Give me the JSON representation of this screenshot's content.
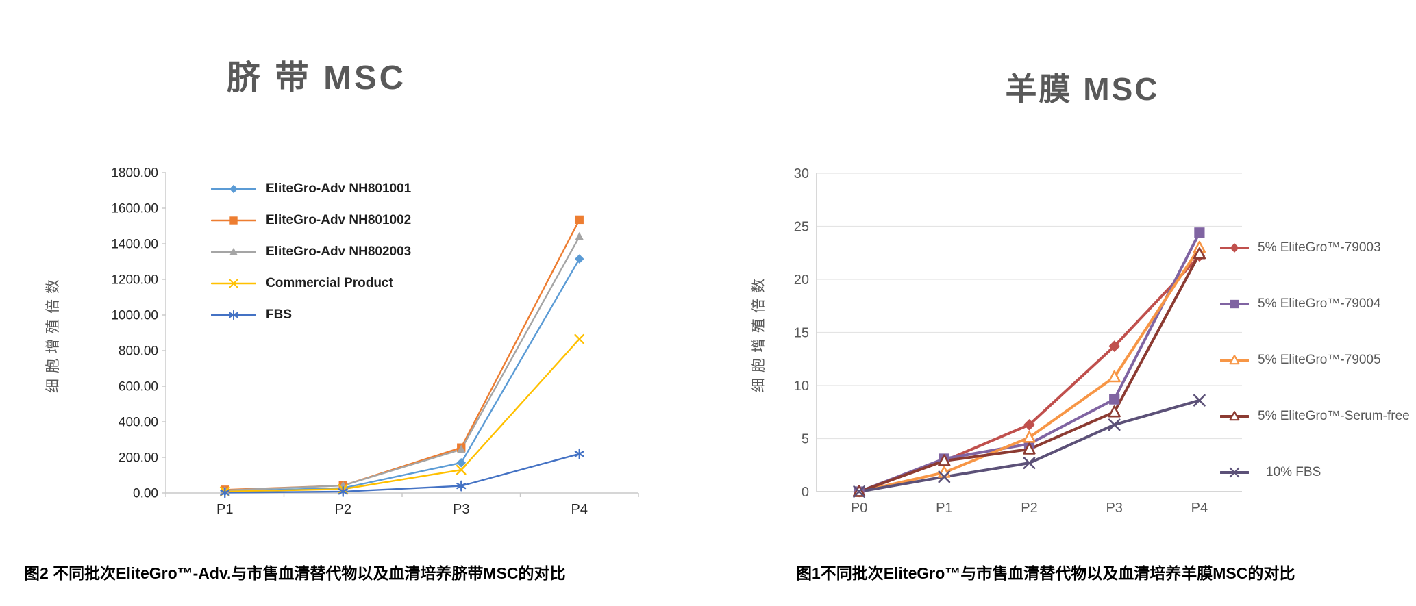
{
  "chart_data": [
    {
      "type": "line",
      "title": "脐 带 MSC",
      "ylabel": "细胞增殖倍数",
      "xlabel": "",
      "caption": "图2 不同批次EliteGro™-Adv.与市售血清替代物以及血清培养脐带MSC的对比",
      "categories": [
        "P1",
        "P2",
        "P3",
        "P4"
      ],
      "ylim": [
        0,
        1800
      ],
      "ytick_labels": [
        "0.00",
        "200.00",
        "400.00",
        "600.00",
        "800.00",
        "1000.00",
        "1200.00",
        "1400.00",
        "1600.00",
        "1800.00"
      ],
      "grid": false,
      "legend_position": "inside-top-left",
      "series": [
        {
          "name": "EliteGro-Adv NH801001",
          "color": "#5B9BD5",
          "marker": "diamond",
          "values": [
            10,
            28,
            170,
            1315
          ]
        },
        {
          "name": "EliteGro-Adv NH801002",
          "color": "#ED7D31",
          "marker": "square",
          "values": [
            18,
            42,
            255,
            1535
          ]
        },
        {
          "name": "EliteGro-Adv NH802003",
          "color": "#A5A5A5",
          "marker": "triangle",
          "values": [
            15,
            42,
            245,
            1440
          ]
        },
        {
          "name": "Commercial Product",
          "color": "#FFC000",
          "marker": "x",
          "values": [
            8,
            22,
            130,
            865
          ]
        },
        {
          "name": "FBS",
          "color": "#4472C4",
          "marker": "asterisk",
          "values": [
            2,
            8,
            40,
            220
          ]
        }
      ]
    },
    {
      "type": "line",
      "title": "羊膜 MSC",
      "ylabel": "细胞增殖倍数",
      "xlabel": "",
      "caption": "图1不同批次EliteGro™与市售血清替代物以及血清培养羊膜MSC的对比",
      "categories": [
        "P0",
        "P1",
        "P2",
        "P3",
        "P4"
      ],
      "ylim": [
        0,
        30
      ],
      "ytick_labels": [
        "0",
        "5",
        "10",
        "15",
        "20",
        "25",
        "30"
      ],
      "grid": true,
      "legend_position": "right",
      "series": [
        {
          "name": "5% EliteGro™-79003",
          "color": "#C0504D",
          "marker": "diamond",
          "values": [
            0,
            2.9,
            6.3,
            13.7,
            22.2
          ]
        },
        {
          "name": "5% EliteGro™-79004",
          "color": "#8064A2",
          "marker": "square",
          "values": [
            0,
            3.1,
            4.5,
            8.7,
            24.4
          ]
        },
        {
          "name": "5% EliteGro™-79005",
          "color": "#F79646",
          "marker": "triangle-open",
          "values": [
            0,
            1.8,
            5.1,
            10.8,
            23.0
          ]
        },
        {
          "name": "5% EliteGro™-Serum-free",
          "color": "#8C3B32",
          "marker": "triangle-open",
          "values": [
            0,
            2.9,
            4.0,
            7.5,
            22.4
          ]
        },
        {
          "name": "10% FBS",
          "color": "#5C5178",
          "marker": "x",
          "values": [
            0,
            1.4,
            2.7,
            6.3,
            8.6
          ]
        }
      ]
    }
  ]
}
